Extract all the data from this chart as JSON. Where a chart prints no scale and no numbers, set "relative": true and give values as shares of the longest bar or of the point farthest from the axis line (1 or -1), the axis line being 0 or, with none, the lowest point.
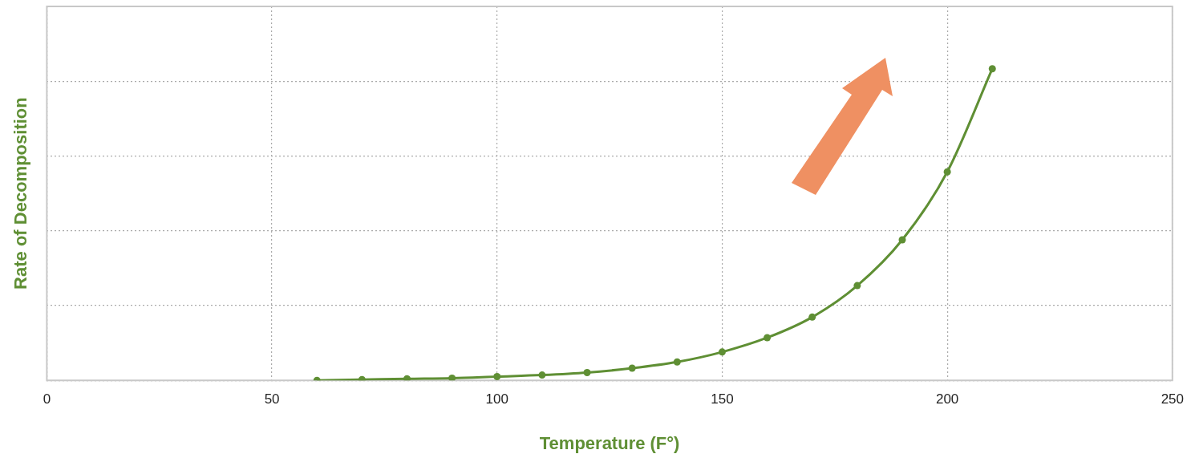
{
  "chart_data": {
    "type": "line",
    "xlabel": "Temperature (F°)",
    "ylabel": "Rate of Decomposition",
    "relative": true,
    "xlim": [
      0,
      250
    ],
    "xticks": [
      0,
      50,
      100,
      150,
      200,
      250
    ],
    "grid": true,
    "marker": "circle",
    "line_style": "solid",
    "x": [
      60,
      70,
      80,
      90,
      100,
      110,
      120,
      130,
      140,
      150,
      160,
      170,
      180,
      190,
      200,
      210
    ],
    "series": [
      {
        "color": "#5f8f34",
        "values": [
          0,
          0.0025,
          0.005,
          0.007,
          0.012,
          0.017,
          0.025,
          0.039,
          0.059,
          0.091,
          0.137,
          0.203,
          0.304,
          0.451,
          0.669,
          1
        ]
      }
    ]
  }
}
